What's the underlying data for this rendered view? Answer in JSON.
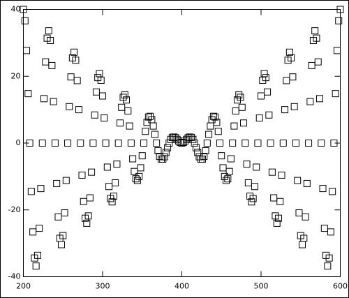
{
  "chart_data": {
    "type": "scatter",
    "color": "#000000",
    "marker": "square",
    "xlim": [
      200,
      600
    ],
    "xticks": [
      200,
      300,
      400,
      500,
      600
    ],
    "ylim": [
      -40,
      40
    ],
    "yticks": [
      -40,
      -20,
      0,
      20,
      40
    ],
    "x": [
      200,
      202,
      204,
      206,
      208,
      210,
      212,
      214,
      216,
      218,
      220,
      222,
      224,
      226,
      228,
      230,
      232,
      234,
      236,
      238,
      240,
      242,
      244,
      246,
      248,
      250,
      252,
      254,
      256,
      258,
      260,
      262,
      264,
      266,
      268,
      270,
      272,
      274,
      276,
      278,
      280,
      282,
      284,
      286,
      288,
      290,
      292,
      294,
      296,
      298,
      300,
      302,
      304,
      306,
      308,
      310,
      312,
      314,
      316,
      318,
      320,
      322,
      324,
      326,
      328,
      330,
      332,
      334,
      336,
      338,
      340,
      342,
      344,
      346,
      348,
      350,
      352,
      354,
      356,
      358,
      360,
      362,
      364,
      366,
      368,
      370,
      372,
      374,
      376,
      378,
      380,
      382,
      384,
      386,
      388,
      390,
      392,
      394,
      396,
      398,
      400,
      402,
      404,
      406,
      408,
      410,
      412,
      414,
      416,
      418,
      420,
      422,
      424,
      426,
      428,
      430,
      432,
      434,
      436,
      438,
      440,
      442,
      444,
      446,
      448,
      450,
      452,
      454,
      456,
      458,
      460,
      462,
      464,
      466,
      468,
      470,
      472,
      474,
      476,
      478,
      480,
      482,
      484,
      486,
      488,
      490,
      492,
      494,
      496,
      498,
      500,
      502,
      504,
      506,
      508,
      510,
      512,
      514,
      516,
      518,
      520,
      522,
      524,
      526,
      528,
      530,
      532,
      534,
      536,
      538,
      540,
      542,
      544,
      546,
      548,
      550,
      552,
      554,
      556,
      558,
      560,
      562,
      564,
      566,
      568,
      570,
      572,
      574,
      576,
      578,
      580,
      582,
      584,
      586,
      588,
      590,
      592,
      594,
      596,
      598,
      600
    ],
    "values": [
      40,
      36.6,
      27.7,
      14.8,
      0,
      -14.5,
      -26.6,
      -34.4,
      -36.8,
      -33.6,
      -25.5,
      -13.6,
      0,
      13.3,
      24.3,
      31.4,
      33.6,
      30.7,
      23.2,
      12.4,
      0,
      -12.1,
      -22.1,
      -28.5,
      -30.4,
      -27.7,
      -20.9,
      -11.2,
      0,
      10.9,
      19.8,
      25.5,
      27.2,
      24.8,
      18.7,
      10.0,
      0,
      -9.6,
      -17.5,
      -22.5,
      -24.0,
      -21.8,
      -16.4,
      -8.7,
      0,
      8.4,
      15.3,
      19.6,
      20.8,
      18.8,
      14.1,
      7.5,
      0,
      -7.2,
      -13.0,
      -16.6,
      -17.6,
      -15.9,
      -11.9,
      -6.3,
      0,
      6.0,
      10.7,
      13.7,
      14.4,
      12.9,
      9.6,
      5.1,
      0,
      -4.7,
      -8.5,
      -10.7,
      -11.2,
      -10.0,
      -7.4,
      -3.8,
      0,
      3.5,
      6.2,
      7.8,
      8.0,
      7.0,
      5.1,
      2.6,
      0,
      -2.3,
      -4.0,
      -4.8,
      -4.8,
      -4.1,
      -2.8,
      -1.4,
      0,
      1.1,
      1.7,
      1.8,
      1.6,
      1.1,
      0.6,
      0.2,
      0,
      0.2,
      0.6,
      1.1,
      1.6,
      1.8,
      1.7,
      1.1,
      0,
      -1.4,
      -2.8,
      -4.1,
      -4.8,
      -4.8,
      -4.0,
      -2.3,
      0,
      2.6,
      5.1,
      7.0,
      8.0,
      7.8,
      6.2,
      3.5,
      0,
      -3.8,
      -7.4,
      -10.0,
      -11.2,
      -10.7,
      -8.5,
      -4.7,
      0,
      5.1,
      9.6,
      12.9,
      14.4,
      13.7,
      10.7,
      6.0,
      0,
      -6.3,
      -11.9,
      -15.9,
      -17.6,
      -16.6,
      -13.0,
      -7.2,
      0,
      7.5,
      14.1,
      18.8,
      20.8,
      19.6,
      15.3,
      8.4,
      0,
      -8.7,
      -16.4,
      -21.8,
      -24.0,
      -22.5,
      -17.5,
      -9.6,
      0,
      10.0,
      18.7,
      24.8,
      27.2,
      25.5,
      19.8,
      10.9,
      0,
      -11.2,
      -20.9,
      -27.7,
      -30.4,
      -28.5,
      -22.1,
      -12.1,
      0,
      12.4,
      23.2,
      30.7,
      33.6,
      31.4,
      24.3,
      13.3,
      0,
      -13.6,
      -25.5,
      -33.6,
      -36.8,
      -34.4,
      -26.6,
      -14.5,
      0,
      14.8,
      27.7,
      36.6,
      40
    ]
  }
}
